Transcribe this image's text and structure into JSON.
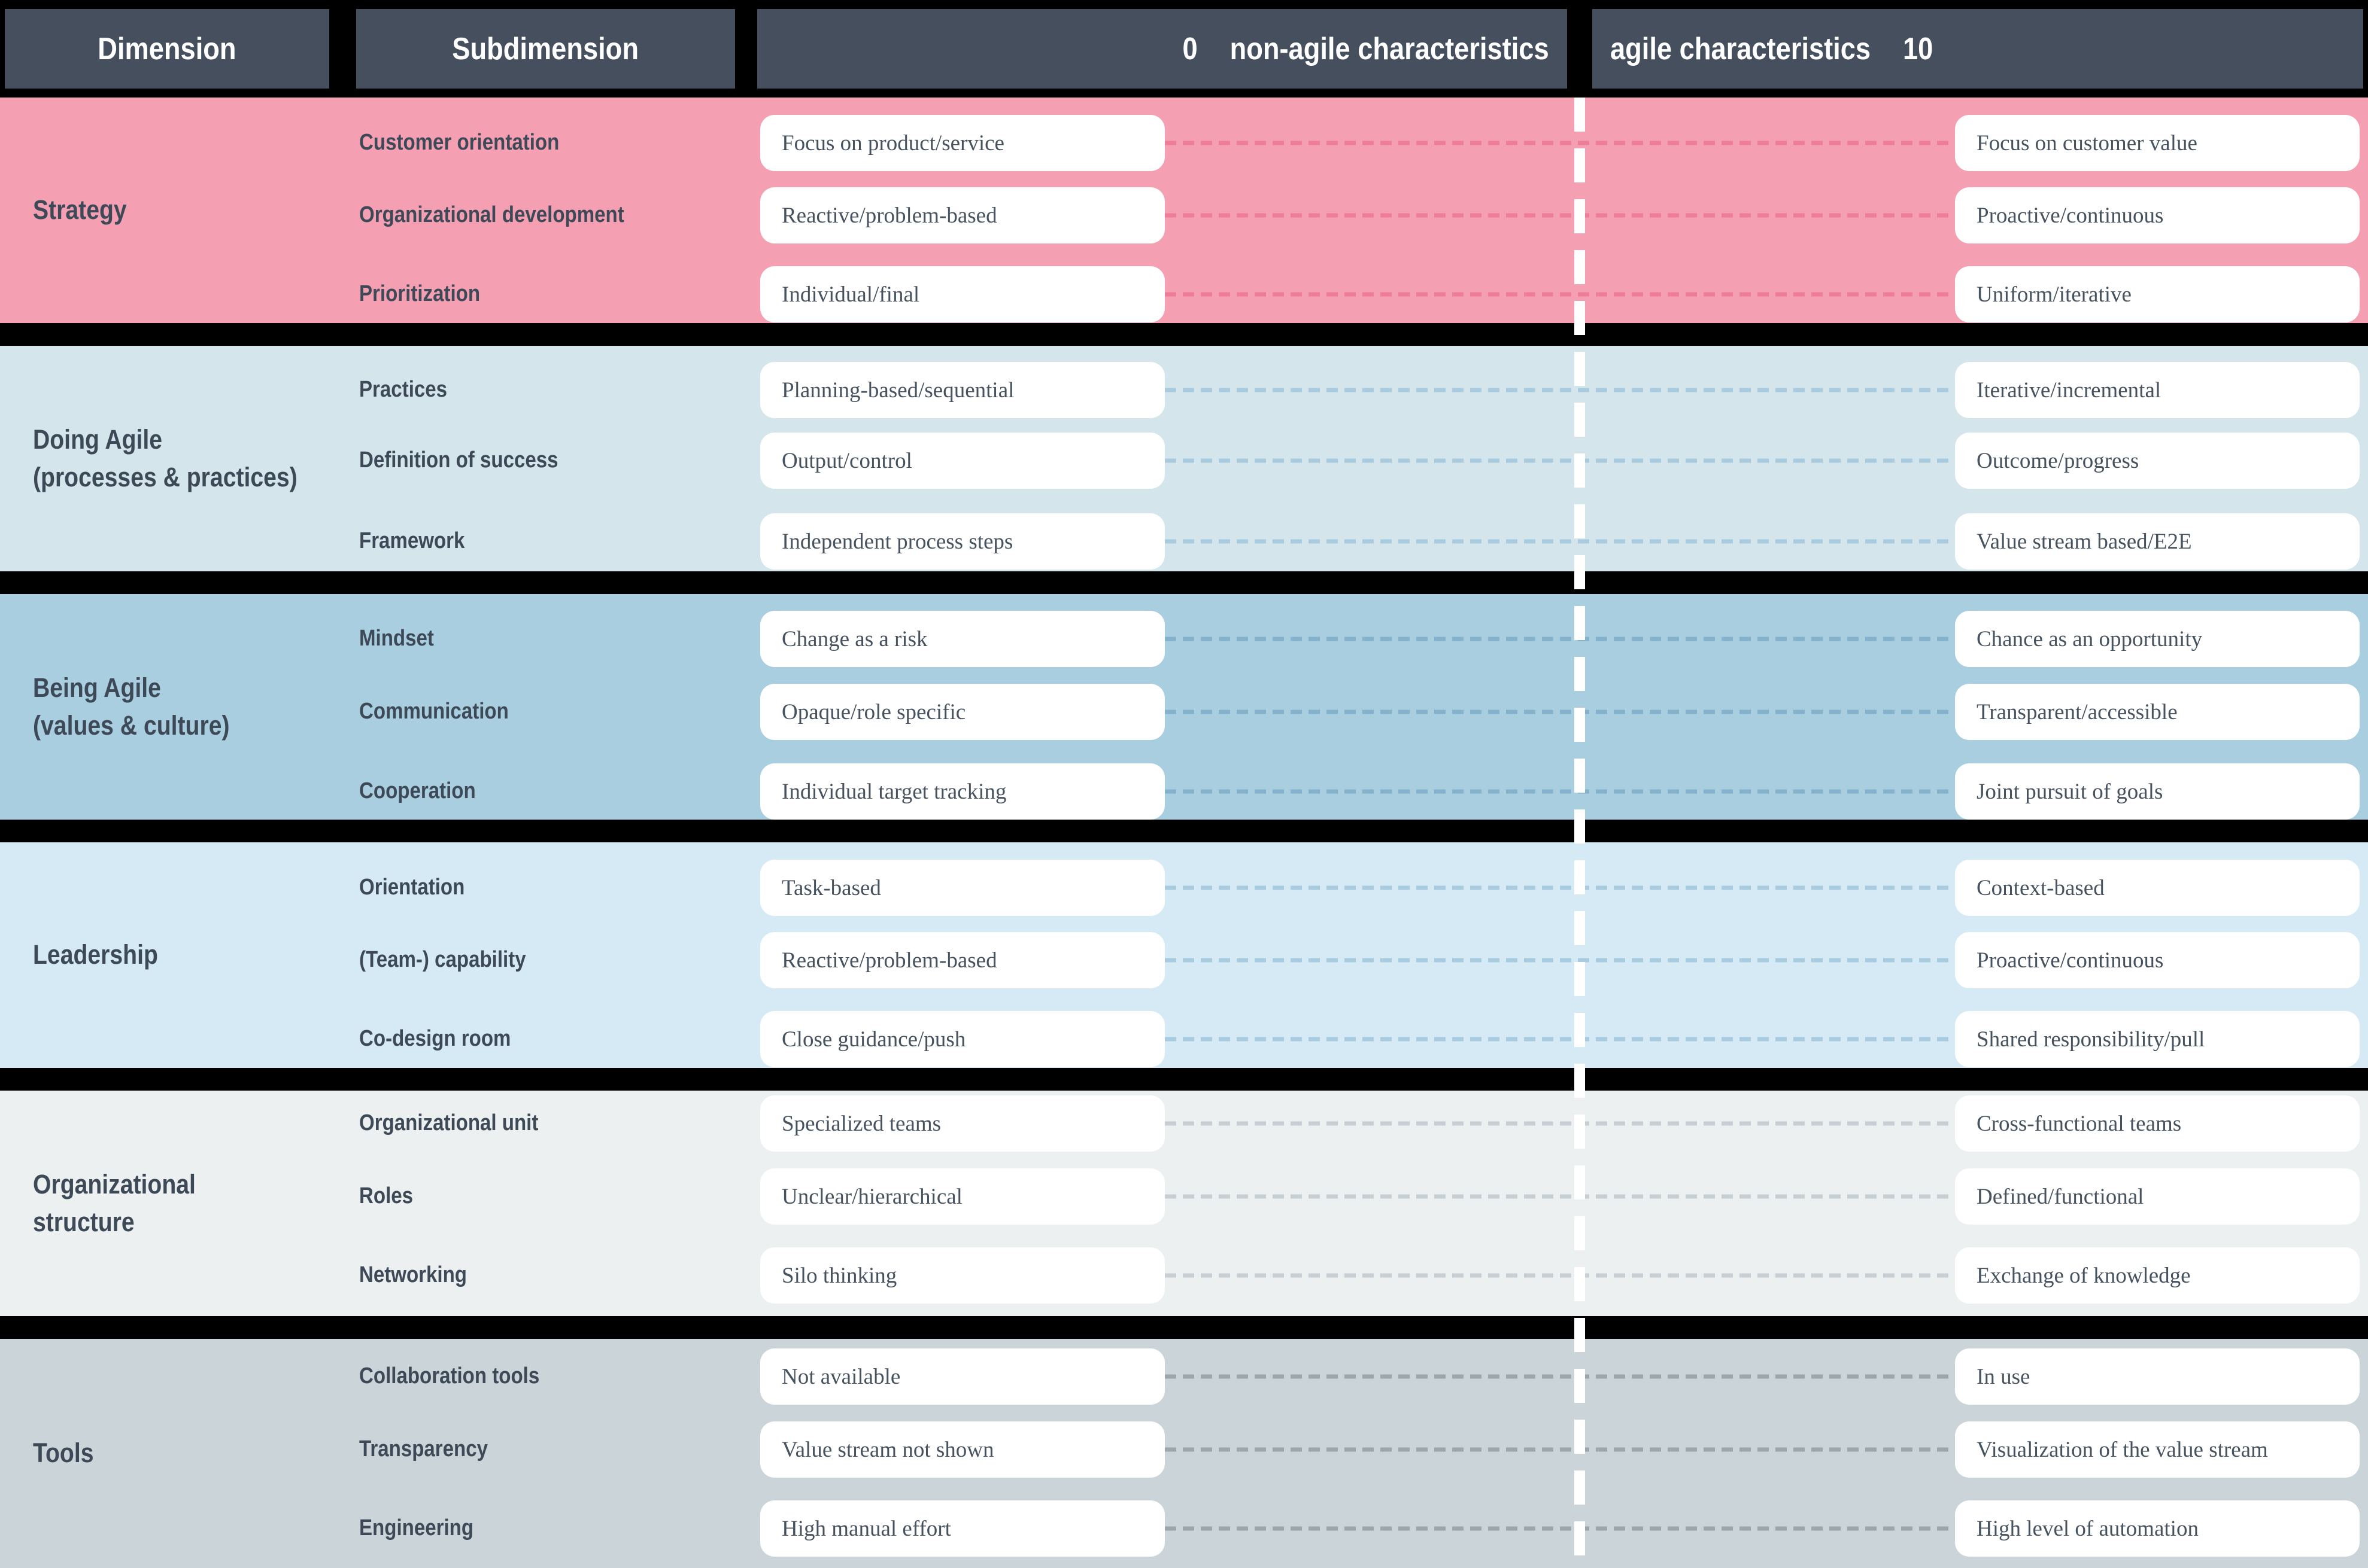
{
  "header": {
    "col1": "Dimension",
    "col2": "Subdimension",
    "col3_zero": "0",
    "col3_label": "non-agile characteristics",
    "col4_label": "agile characteristics",
    "col4_ten": "10"
  },
  "colors": {
    "page_background": "#000000",
    "header_background": "#454F5D",
    "header_text": "#FFFFFF",
    "label_text": "#3E4957",
    "box_background": "#FFFFFF",
    "box_text": "#47525F",
    "scale_divider": "#FFFFFF"
  },
  "sections": [
    {
      "dimension": "Strategy",
      "bg": "#F5A0B2",
      "dash": "#EE7D97",
      "rows": [
        {
          "sub": "Customer orientation",
          "left": "Focus on product/service",
          "right": "Focus on customer value"
        },
        {
          "sub": "Organizational development",
          "left": "Reactive/problem-based",
          "right": "Proactive/continuous"
        },
        {
          "sub": "Prioritization",
          "left": "Individual/final",
          "right": "Uniform/iterative"
        }
      ]
    },
    {
      "dimension": "Doing Agile\n(processes & practices)",
      "bg": "#D4E5EC",
      "dash": "#A8CBDF",
      "rows": [
        {
          "sub": "Practices",
          "left": "Planning-based/sequential",
          "right": "Iterative/incremental"
        },
        {
          "sub": "Definition of success",
          "left": "Output/control",
          "right": "Outcome/progress"
        },
        {
          "sub": "Framework",
          "left": "Independent process steps",
          "right": "Value stream based/E2E"
        }
      ]
    },
    {
      "dimension": "Being Agile\n(values & culture)",
      "bg": "#A8CEE0",
      "dash": "#84B2CD",
      "rows": [
        {
          "sub": "Mindset",
          "left": "Change as a risk",
          "right": "Chance as an opportunity"
        },
        {
          "sub": "Communication",
          "left": "Opaque/role specific",
          "right": "Transparent/accessible"
        },
        {
          "sub": "Cooperation",
          "left": "Individual target tracking",
          "right": "Joint pursuit of goals"
        }
      ]
    },
    {
      "dimension": "Leadership",
      "bg": "#D6EAF6",
      "dash": "#A8CBE0",
      "rows": [
        {
          "sub": "Orientation",
          "left": "Task-based",
          "right": "Context-based"
        },
        {
          "sub": "(Team-) capability",
          "left": "Reactive/problem-based",
          "right": "Proactive/continuous"
        },
        {
          "sub": "Co-design room",
          "left": "Close guidance/push",
          "right": "Shared responsibility/pull"
        }
      ]
    },
    {
      "dimension": "Organizational\nstructure",
      "bg": "#EDF0F1",
      "dash": "#C8CFD4",
      "rows": [
        {
          "sub": "Organizational unit",
          "left": "Specialized teams",
          "right": "Cross-functional teams"
        },
        {
          "sub": "Roles",
          "left": "Unclear/hierarchical",
          "right": "Defined/functional"
        },
        {
          "sub": "Networking",
          "left": "Silo thinking",
          "right": "Exchange of knowledge"
        }
      ]
    },
    {
      "dimension": "Tools",
      "bg": "#CBD5D9",
      "dash": "#9DA6AB",
      "rows": [
        {
          "sub": "Collaboration tools",
          "left": "Not available",
          "right": "In use"
        },
        {
          "sub": "Transparency",
          "left": "Value stream not shown",
          "right": "Visualization of the value stream"
        },
        {
          "sub": "Engineering",
          "left": "High manual effort",
          "right": "High level of automation"
        }
      ]
    }
  ]
}
